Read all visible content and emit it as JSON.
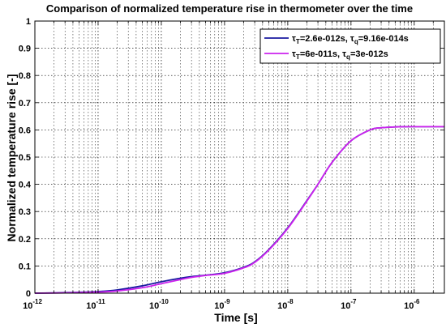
{
  "chart_data": {
    "type": "line",
    "title": "Comparison of normalized temperature rise in thermometer over the time",
    "xlabel": "Time [s]",
    "ylabel": "Normalized temperature rise [-]",
    "xscale": "log",
    "xlim": [
      1e-12,
      3e-06
    ],
    "ylim": [
      0,
      1
    ],
    "grid": true,
    "legend_position": "top-right",
    "x_tick_labels": [
      {
        "base": "10",
        "exp": "-12",
        "value": 1e-12
      },
      {
        "base": "10",
        "exp": "-11",
        "value": 1e-11
      },
      {
        "base": "10",
        "exp": "-10",
        "value": 1e-10
      },
      {
        "base": "10",
        "exp": "-9",
        "value": 1e-09
      },
      {
        "base": "10",
        "exp": "-8",
        "value": 1e-08
      },
      {
        "base": "10",
        "exp": "-7",
        "value": 1e-07
      },
      {
        "base": "10",
        "exp": "-6",
        "value": 1e-06
      }
    ],
    "y_ticks": [
      0,
      0.1,
      0.2,
      0.3,
      0.4,
      0.5,
      0.6,
      0.7,
      0.8,
      0.9,
      1
    ],
    "y_tick_labels": [
      "0",
      "0.1",
      "0.2",
      "0.3",
      "0.4",
      "0.5",
      "0.6",
      "0.7",
      "0.8",
      "0.9",
      "1"
    ],
    "series": [
      {
        "legend": {
          "tau_t_val": "=2.6e-012s, ",
          "tau_q_val": "=9.16e-014s"
        },
        "color": "#1a1aa0",
        "x": [
          1e-12,
          3e-12,
          1e-11,
          2e-11,
          5e-11,
          1e-10,
          2e-10,
          3e-10,
          5e-10,
          1e-09,
          2e-09,
          3e-09,
          5e-09,
          1e-08,
          2e-08,
          3e-08,
          5e-08,
          1e-07,
          2e-07,
          3e-07,
          5e-07,
          1e-06,
          3e-06
        ],
        "y": [
          0,
          0.002,
          0.006,
          0.012,
          0.027,
          0.042,
          0.055,
          0.061,
          0.066,
          0.075,
          0.095,
          0.115,
          0.16,
          0.24,
          0.34,
          0.4,
          0.48,
          0.56,
          0.6,
          0.608,
          0.611,
          0.612,
          0.612
        ]
      },
      {
        "legend": {
          "tau_t_val": "=6e-011s, ",
          "tau_q_val": "=3e-012s"
        },
        "color": "#cc22ee",
        "x": [
          1e-12,
          3e-12,
          1e-11,
          2e-11,
          5e-11,
          1e-10,
          2e-10,
          3e-10,
          5e-10,
          1e-09,
          2e-09,
          3e-09,
          5e-09,
          1e-08,
          2e-08,
          3e-08,
          5e-08,
          1e-07,
          2e-07,
          3e-07,
          5e-07,
          1e-06,
          3e-06
        ],
        "y": [
          0,
          0.001,
          0.004,
          0.008,
          0.02,
          0.035,
          0.05,
          0.058,
          0.065,
          0.073,
          0.093,
          0.113,
          0.158,
          0.238,
          0.338,
          0.4,
          0.48,
          0.56,
          0.6,
          0.608,
          0.611,
          0.612,
          0.612
        ]
      }
    ]
  }
}
